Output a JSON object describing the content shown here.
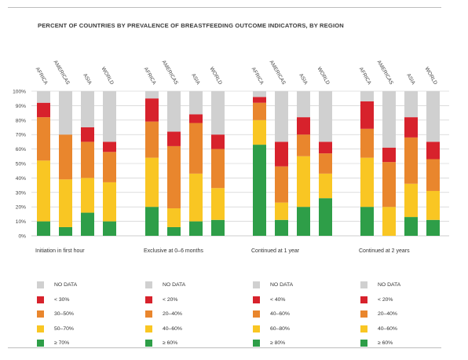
{
  "title": "PERCENT OF COUNTRIES BY PREVALENCE OF BREASTFEEDING OUTCOME INDICATORS, BY REGION",
  "colors": {
    "no_data": "#d0d0d0",
    "red": "#d7222c",
    "orange": "#e9862d",
    "yellow": "#f9c623",
    "green": "#2e9e48"
  },
  "chart_data": {
    "type": "bar",
    "stacked": true,
    "ylim": [
      0,
      100
    ],
    "y_ticks": [
      "0%",
      "10%",
      "20%",
      "30%",
      "40%",
      "50%",
      "60%",
      "70%",
      "80%",
      "90%",
      "100%"
    ],
    "y_values": [
      0,
      10,
      20,
      30,
      40,
      50,
      60,
      70,
      80,
      90,
      100
    ],
    "grid": true,
    "legend_placement": "bottom",
    "series_order": [
      "green",
      "yellow",
      "orange",
      "red",
      "no_data"
    ],
    "groups": [
      {
        "label": "Initiation in first hour",
        "categories": [
          "AFRICA",
          "AMERICAS",
          "ASIA",
          "WORLD"
        ],
        "stacks": [
          {
            "green": 10,
            "yellow": 42,
            "orange": 30,
            "red": 10,
            "no_data": 8
          },
          {
            "green": 6,
            "yellow": 33,
            "orange": 31,
            "red": 0,
            "no_data": 30
          },
          {
            "green": 16,
            "yellow": 24,
            "orange": 25,
            "red": 10,
            "no_data": 25
          },
          {
            "green": 10,
            "yellow": 27,
            "orange": 21,
            "red": 7,
            "no_data": 35
          }
        ],
        "legend": [
          {
            "key": "no_data",
            "label": "NO DATA"
          },
          {
            "key": "red",
            "label": "< 30%"
          },
          {
            "key": "orange",
            "label": "30–50%"
          },
          {
            "key": "yellow",
            "label": "50–70%"
          },
          {
            "key": "green",
            "label": "≥ 70%"
          }
        ]
      },
      {
        "label": "Exclusive at 0–6 months",
        "categories": [
          "AFRICA",
          "AMERICAS",
          "ASIA",
          "WORLD"
        ],
        "stacks": [
          {
            "green": 20,
            "yellow": 34,
            "orange": 25,
            "red": 16,
            "no_data": 5
          },
          {
            "green": 6,
            "yellow": 13,
            "orange": 43,
            "red": 10,
            "no_data": 28
          },
          {
            "green": 10,
            "yellow": 33,
            "orange": 35,
            "red": 6,
            "no_data": 16
          },
          {
            "green": 11,
            "yellow": 22,
            "orange": 27,
            "red": 10,
            "no_data": 30
          }
        ],
        "legend": [
          {
            "key": "no_data",
            "label": "NO DATA"
          },
          {
            "key": "red",
            "label": "< 20%"
          },
          {
            "key": "orange",
            "label": "20–40%"
          },
          {
            "key": "yellow",
            "label": "40–60%"
          },
          {
            "key": "green",
            "label": "≥ 60%"
          }
        ]
      },
      {
        "label": "Continued at 1 year",
        "categories": [
          "AFRICA",
          "AMERICAS",
          "ASIA",
          "WORLD"
        ],
        "stacks": [
          {
            "green": 63,
            "yellow": 17,
            "orange": 12,
            "red": 4,
            "no_data": 4
          },
          {
            "green": 11,
            "yellow": 12,
            "orange": 25,
            "red": 17,
            "no_data": 35
          },
          {
            "green": 20,
            "yellow": 35,
            "orange": 15,
            "red": 12,
            "no_data": 18
          },
          {
            "green": 26,
            "yellow": 17,
            "orange": 14,
            "red": 8,
            "no_data": 35
          }
        ],
        "legend": [
          {
            "key": "no_data",
            "label": "NO DATA"
          },
          {
            "key": "red",
            "label": "< 40%"
          },
          {
            "key": "orange",
            "label": "40–60%"
          },
          {
            "key": "yellow",
            "label": "60–80%"
          },
          {
            "key": "green",
            "label": "≥ 80%"
          }
        ]
      },
      {
        "label": "Continued at 2 years",
        "categories": [
          "AFRICA",
          "AMERICAS",
          "ASIA",
          "WORLD"
        ],
        "stacks": [
          {
            "green": 20,
            "yellow": 34,
            "orange": 20,
            "red": 19,
            "no_data": 7
          },
          {
            "green": 0,
            "yellow": 20,
            "orange": 31,
            "red": 10,
            "no_data": 39
          },
          {
            "green": 13,
            "yellow": 23,
            "orange": 32,
            "red": 14,
            "no_data": 18
          },
          {
            "green": 11,
            "yellow": 20,
            "orange": 22,
            "red": 12,
            "no_data": 35
          }
        ],
        "legend": [
          {
            "key": "no_data",
            "label": "NO DATA"
          },
          {
            "key": "red",
            "label": "< 20%"
          },
          {
            "key": "orange",
            "label": "20–40%"
          },
          {
            "key": "yellow",
            "label": "40–60%"
          },
          {
            "key": "green",
            "label": "≥ 60%"
          }
        ]
      }
    ]
  }
}
